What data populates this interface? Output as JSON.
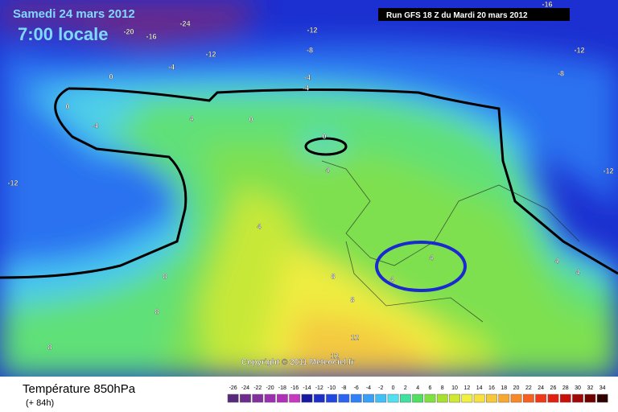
{
  "header": {
    "date": "Samedi 24 mars 2012",
    "time": "7:00 locale",
    "run": "Run GFS 18 Z du Mardi 20 mars 2012"
  },
  "map": {
    "copyright": "Copyright © 2011 Meteociel.fr",
    "contour_labels": [
      -16,
      -24,
      -20,
      -16,
      -12,
      -8,
      -12,
      -4,
      -12,
      -8,
      0,
      -4,
      -4,
      0,
      -4,
      4,
      0,
      0,
      4,
      -12,
      -12,
      4,
      4,
      4,
      8,
      8,
      8,
      8,
      8,
      12,
      12,
      4,
      4
    ]
  },
  "footer": {
    "title": "Température 850hPa",
    "lead": "(+ 84h)"
  },
  "legend": {
    "ticks": [
      -26,
      -24,
      -22,
      -20,
      -18,
      -16,
      -14,
      -12,
      -10,
      -8,
      -6,
      -4,
      -2,
      0,
      2,
      4,
      6,
      8,
      10,
      12,
      14,
      16,
      18,
      20,
      22,
      24,
      26,
      28,
      30,
      32,
      34
    ],
    "colors": [
      "#5a2a7a",
      "#6e2c8c",
      "#82309e",
      "#9a30b0",
      "#b030b8",
      "#c838c0",
      "#1818a0",
      "#1c30c8",
      "#2048e0",
      "#2a64f0",
      "#3080f8",
      "#38a0f8",
      "#40c0f8",
      "#50e0f0",
      "#40e0a0",
      "#50e060",
      "#80e040",
      "#a8e030",
      "#d0e830",
      "#f0f040",
      "#f8e040",
      "#f8c838",
      "#f8a830",
      "#f88828",
      "#f86020",
      "#f03818",
      "#e02010",
      "#c81008",
      "#a00808",
      "#700000",
      "#300000"
    ]
  }
}
